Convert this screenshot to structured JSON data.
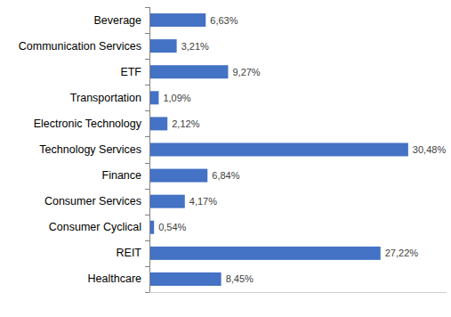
{
  "chart_data": {
    "type": "bar",
    "orientation": "horizontal",
    "categories": [
      "Beverage",
      "Communication Services",
      "ETF",
      "Transportation",
      "Electronic Technology",
      "Technology Services",
      "Finance",
      "Consumer Services",
      "Consumer Cyclical",
      "REIT",
      "Healthcare"
    ],
    "values": [
      6.63,
      3.21,
      9.27,
      1.09,
      2.12,
      30.48,
      6.84,
      4.17,
      0.54,
      27.22,
      8.45
    ],
    "value_labels": [
      "6,63%",
      "3,21%",
      "9,27%",
      "1,09%",
      "2,12%",
      "30,48%",
      "6,84%",
      "4,17%",
      "0,54%",
      "27,22%",
      "8,45%"
    ],
    "color": "#4472c4",
    "xlim": [
      0,
      35
    ],
    "data_labels": true,
    "tick_labels": "y",
    "grid": false
  }
}
